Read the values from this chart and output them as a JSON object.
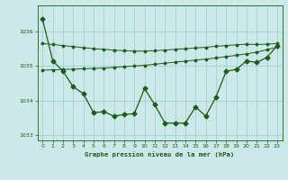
{
  "title": "Graphe pression niveau de la mer (hPa)",
  "bg_color": "#cce8e8",
  "grid_color": "#99cccc",
  "line_color": "#1a5c1a",
  "xlim": [
    -0.5,
    23.5
  ],
  "ylim": [
    1032.85,
    1036.75
  ],
  "yticks": [
    1033,
    1034,
    1035,
    1036
  ],
  "xticks": [
    0,
    1,
    2,
    3,
    4,
    5,
    6,
    7,
    8,
    9,
    10,
    11,
    12,
    13,
    14,
    15,
    16,
    17,
    18,
    19,
    20,
    21,
    22,
    23
  ],
  "main_y": [
    1036.35,
    1035.15,
    1034.85,
    1034.4,
    1034.2,
    1033.65,
    1033.68,
    1033.55,
    1033.6,
    1033.62,
    1034.35,
    1033.88,
    1033.35,
    1033.35,
    1033.35,
    1033.82,
    1033.55,
    1034.1,
    1034.85,
    1034.9,
    1035.15,
    1035.1,
    1035.25,
    1035.58
  ],
  "upper_y": [
    1035.65,
    1035.62,
    1035.59,
    1035.56,
    1035.53,
    1035.5,
    1035.48,
    1035.46,
    1035.44,
    1035.43,
    1035.43,
    1035.44,
    1035.46,
    1035.48,
    1035.5,
    1035.52,
    1035.54,
    1035.57,
    1035.59,
    1035.61,
    1035.63,
    1035.62,
    1035.63,
    1035.65
  ],
  "lower_y": [
    1034.88,
    1034.89,
    1034.9,
    1034.91,
    1034.92,
    1034.93,
    1034.94,
    1034.96,
    1034.98,
    1035.0,
    1035.02,
    1035.05,
    1035.08,
    1035.11,
    1035.14,
    1035.17,
    1035.2,
    1035.23,
    1035.27,
    1035.31,
    1035.35,
    1035.4,
    1035.47,
    1035.55
  ]
}
